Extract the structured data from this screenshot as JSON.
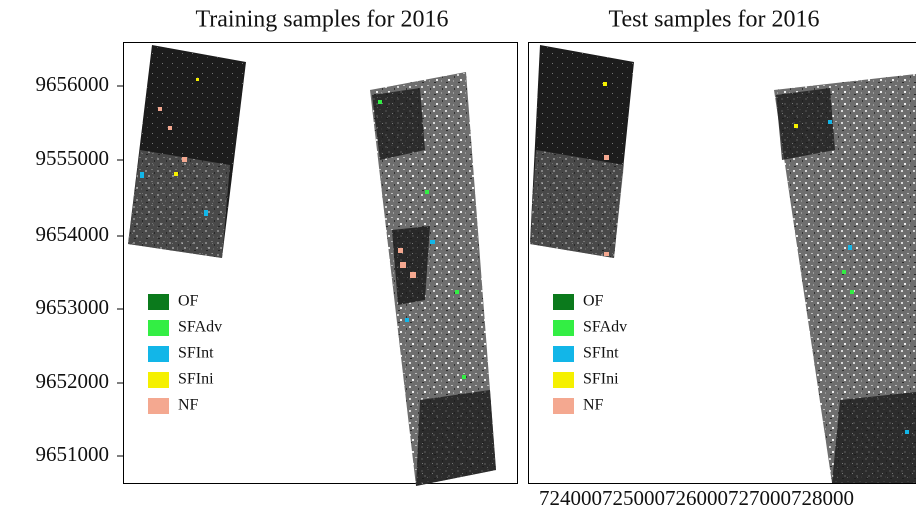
{
  "panels": [
    {
      "title": "Training samples for 2016",
      "legend": [
        {
          "label": "OF",
          "color": "#0b7a1c"
        },
        {
          "label": "SFAdv",
          "color": "#33ee44"
        },
        {
          "label": "SFInt",
          "color": "#12b6e8"
        },
        {
          "label": "SFIni",
          "color": "#f5f000"
        },
        {
          "label": "NF",
          "color": "#f4a890"
        }
      ]
    },
    {
      "title": "Test samples for 2016",
      "legend": [
        {
          "label": "OF",
          "color": "#0b7a1c"
        },
        {
          "label": "SFAdv",
          "color": "#33ee44"
        },
        {
          "label": "SFInt",
          "color": "#12b6e8"
        },
        {
          "label": "SFIni",
          "color": "#f5f000"
        },
        {
          "label": "NF",
          "color": "#f4a890"
        }
      ]
    }
  ],
  "y_axis_labels": [
    "9656000",
    "9555000",
    "9654000",
    "9653000",
    "9652000",
    "9651000"
  ],
  "x_axis_labels": [
    "724000",
    "725000",
    "726000",
    "727000",
    "728000"
  ]
}
